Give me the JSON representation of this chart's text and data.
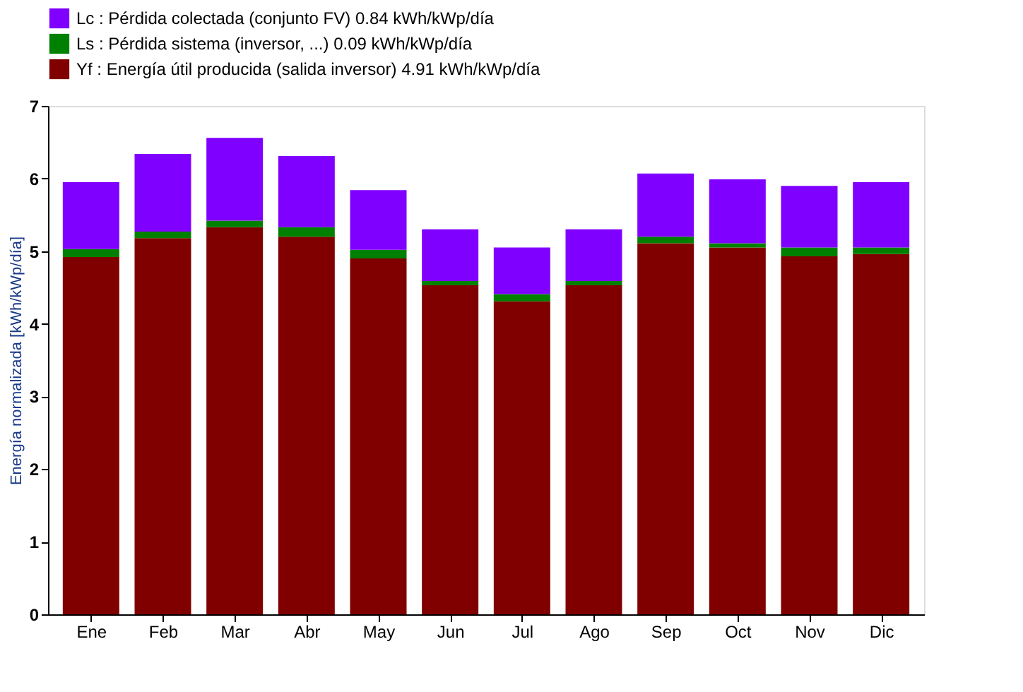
{
  "chart_data": {
    "type": "bar",
    "stacked": true,
    "ylabel": "Energía normalizada [kWh/kWp/día]",
    "categories": [
      "Ene",
      "Feb",
      "Mar",
      "Abr",
      "May",
      "Jun",
      "Jul",
      "Ago",
      "Sep",
      "Oct",
      "Nov",
      "Dic"
    ],
    "series": [
      {
        "name": "Yf : Energía útil producida (salida inversor)   4.91 kWh/kWp/día",
        "color": "#800000",
        "values": [
          4.92,
          5.18,
          5.33,
          5.2,
          4.9,
          4.53,
          4.31,
          4.53,
          5.11,
          5.05,
          4.93,
          4.96
        ]
      },
      {
        "name": "Ls : Pérdida sistema (inversor, ...)   0.09 kWh/kWp/día",
        "color": "#008000",
        "values": [
          0.11,
          0.09,
          0.09,
          0.13,
          0.12,
          0.06,
          0.1,
          0.06,
          0.09,
          0.06,
          0.12,
          0.09
        ]
      },
      {
        "name": "Lc : Pérdida colectada (conjunto FV)   0.84 kWh/kWp/día",
        "color": "#8000ff",
        "values": [
          0.92,
          1.07,
          1.14,
          0.98,
          0.82,
          0.71,
          0.64,
          0.71,
          0.87,
          0.88,
          0.85,
          0.9
        ]
      }
    ],
    "ylim": [
      0,
      7
    ],
    "yticks": [
      0,
      1,
      2,
      3,
      4,
      5,
      6,
      7
    ],
    "grid": false,
    "legend": "top"
  }
}
